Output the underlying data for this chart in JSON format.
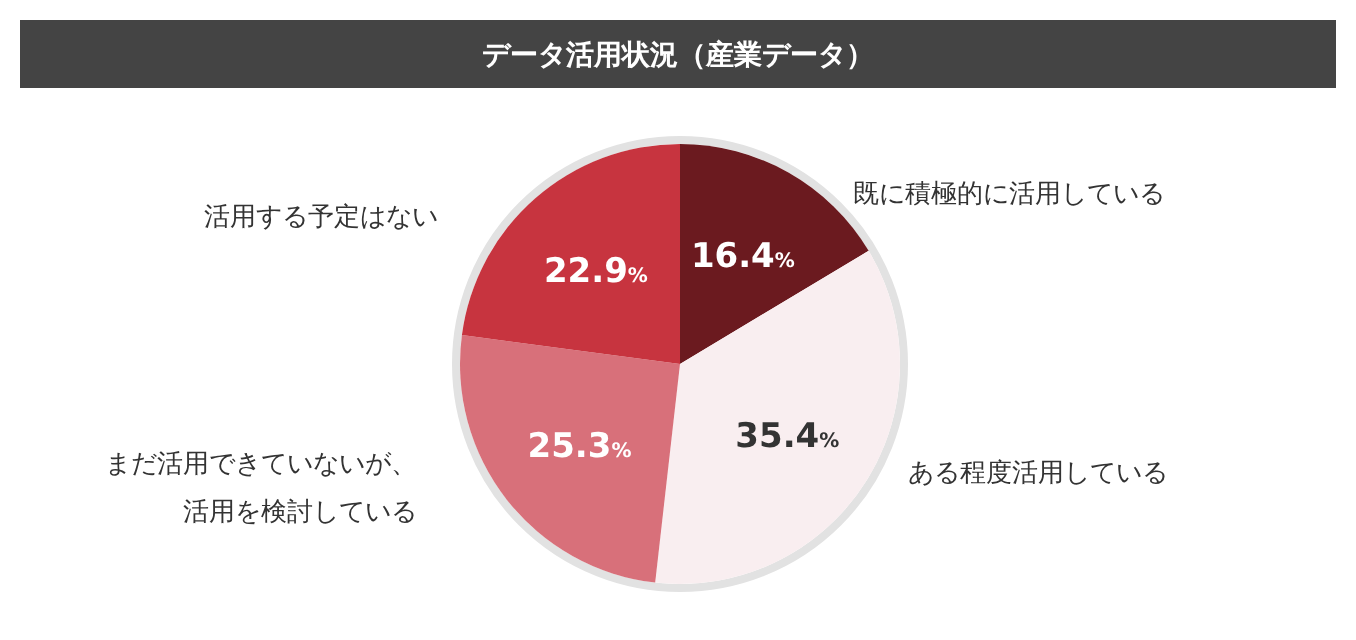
{
  "chart_data": {
    "type": "pie",
    "title": "データ活用状況（産業データ）",
    "categories": [
      "既に積極的に活用している",
      "ある程度活用している",
      "まだ活用できていないが、活用を検討している",
      "活用する予定はない"
    ],
    "values": [
      16.4,
      35.4,
      25.3,
      22.9
    ],
    "colors": [
      "#6b1a1f",
      "#f9eef0",
      "#d8707a",
      "#c7343f"
    ],
    "value_labels": [
      "16.4%",
      "35.4%",
      "25.3%",
      "22.9%"
    ]
  }
}
